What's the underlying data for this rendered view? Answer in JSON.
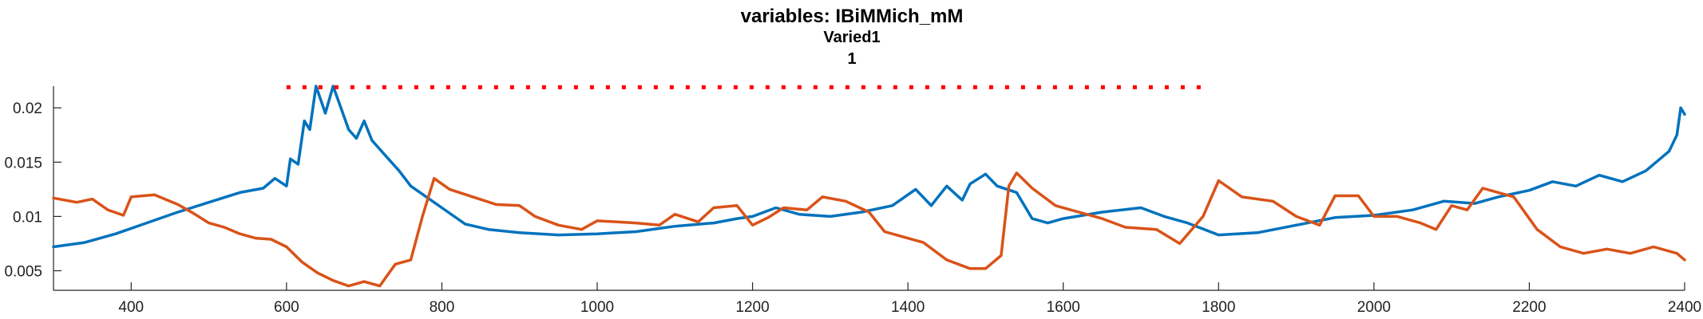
{
  "chart_data": {
    "type": "line",
    "title": "variables: IBiMMich_mM",
    "subtitle_lines": [
      "Varied1",
      "1"
    ],
    "xlabel": "",
    "ylabel": "",
    "xlim": [
      300,
      2400
    ],
    "ylim": [
      0.0032,
      0.022
    ],
    "x_ticks": [
      400,
      600,
      800,
      1000,
      1200,
      1400,
      1600,
      1800,
      2000,
      2200,
      2400
    ],
    "y_ticks": [
      0.005,
      0.01,
      0.015,
      0.02
    ],
    "y_tick_labels": [
      "0.005",
      "0.01",
      "0.015",
      "0.02"
    ],
    "grid": false,
    "colors": {
      "series1": "#0072BD",
      "series2": "#D95319",
      "marker_line": "#FF0000",
      "axis": "#262626"
    },
    "series": [
      {
        "color": "#0072BD",
        "points": [
          [
            300,
            0.0072
          ],
          [
            340,
            0.0076
          ],
          [
            380,
            0.0084
          ],
          [
            420,
            0.0094
          ],
          [
            460,
            0.0104
          ],
          [
            500,
            0.0113
          ],
          [
            540,
            0.0122
          ],
          [
            570,
            0.0126
          ],
          [
            585,
            0.0135
          ],
          [
            600,
            0.0128
          ],
          [
            605,
            0.0153
          ],
          [
            615,
            0.0148
          ],
          [
            623,
            0.0188
          ],
          [
            630,
            0.018
          ],
          [
            638,
            0.022
          ],
          [
            650,
            0.0195
          ],
          [
            660,
            0.022
          ],
          [
            670,
            0.02
          ],
          [
            680,
            0.018
          ],
          [
            690,
            0.0172
          ],
          [
            700,
            0.0188
          ],
          [
            710,
            0.017
          ],
          [
            720,
            0.0162
          ],
          [
            730,
            0.0154
          ],
          [
            745,
            0.0142
          ],
          [
            760,
            0.0128
          ],
          [
            780,
            0.0118
          ],
          [
            800,
            0.0108
          ],
          [
            830,
            0.0093
          ],
          [
            860,
            0.0088
          ],
          [
            900,
            0.0085
          ],
          [
            950,
            0.0083
          ],
          [
            1000,
            0.0084
          ],
          [
            1050,
            0.0086
          ],
          [
            1100,
            0.0091
          ],
          [
            1150,
            0.0094
          ],
          [
            1180,
            0.0098
          ],
          [
            1200,
            0.01
          ],
          [
            1230,
            0.0108
          ],
          [
            1260,
            0.0102
          ],
          [
            1300,
            0.01
          ],
          [
            1340,
            0.0104
          ],
          [
            1380,
            0.011
          ],
          [
            1410,
            0.0125
          ],
          [
            1430,
            0.011
          ],
          [
            1450,
            0.0128
          ],
          [
            1470,
            0.0115
          ],
          [
            1480,
            0.013
          ],
          [
            1500,
            0.0139
          ],
          [
            1515,
            0.0128
          ],
          [
            1540,
            0.0122
          ],
          [
            1560,
            0.0098
          ],
          [
            1580,
            0.0094
          ],
          [
            1600,
            0.0098
          ],
          [
            1650,
            0.0104
          ],
          [
            1700,
            0.0108
          ],
          [
            1730,
            0.01
          ],
          [
            1760,
            0.0094
          ],
          [
            1800,
            0.0083
          ],
          [
            1850,
            0.0085
          ],
          [
            1900,
            0.0092
          ],
          [
            1950,
            0.0099
          ],
          [
            2000,
            0.0101
          ],
          [
            2050,
            0.0106
          ],
          [
            2090,
            0.0114
          ],
          [
            2130,
            0.0112
          ],
          [
            2160,
            0.0118
          ],
          [
            2200,
            0.0124
          ],
          [
            2230,
            0.0132
          ],
          [
            2260,
            0.0128
          ],
          [
            2290,
            0.0138
          ],
          [
            2320,
            0.0132
          ],
          [
            2350,
            0.0142
          ],
          [
            2380,
            0.016
          ],
          [
            2390,
            0.0175
          ],
          [
            2395,
            0.02
          ],
          [
            2400,
            0.0194
          ]
        ]
      },
      {
        "color": "#D95319",
        "points": [
          [
            300,
            0.0117
          ],
          [
            330,
            0.0113
          ],
          [
            350,
            0.0116
          ],
          [
            370,
            0.0106
          ],
          [
            390,
            0.0101
          ],
          [
            400,
            0.0118
          ],
          [
            430,
            0.012
          ],
          [
            460,
            0.0111
          ],
          [
            480,
            0.0103
          ],
          [
            500,
            0.0094
          ],
          [
            520,
            0.009
          ],
          [
            540,
            0.0084
          ],
          [
            560,
            0.008
          ],
          [
            580,
            0.0079
          ],
          [
            600,
            0.0072
          ],
          [
            620,
            0.0058
          ],
          [
            640,
            0.0048
          ],
          [
            660,
            0.0041
          ],
          [
            680,
            0.0036
          ],
          [
            700,
            0.004
          ],
          [
            720,
            0.0036
          ],
          [
            740,
            0.0056
          ],
          [
            760,
            0.006
          ],
          [
            775,
            0.01
          ],
          [
            790,
            0.0135
          ],
          [
            810,
            0.0125
          ],
          [
            840,
            0.0118
          ],
          [
            870,
            0.0111
          ],
          [
            900,
            0.011
          ],
          [
            920,
            0.01
          ],
          [
            950,
            0.0092
          ],
          [
            980,
            0.0088
          ],
          [
            1000,
            0.0096
          ],
          [
            1050,
            0.0094
          ],
          [
            1080,
            0.0092
          ],
          [
            1100,
            0.0102
          ],
          [
            1130,
            0.0095
          ],
          [
            1150,
            0.0108
          ],
          [
            1180,
            0.011
          ],
          [
            1200,
            0.0092
          ],
          [
            1220,
            0.0099
          ],
          [
            1240,
            0.0108
          ],
          [
            1270,
            0.0106
          ],
          [
            1290,
            0.0118
          ],
          [
            1320,
            0.0114
          ],
          [
            1350,
            0.0104
          ],
          [
            1370,
            0.0086
          ],
          [
            1390,
            0.0082
          ],
          [
            1420,
            0.0076
          ],
          [
            1450,
            0.006
          ],
          [
            1480,
            0.0052
          ],
          [
            1500,
            0.0052
          ],
          [
            1520,
            0.0064
          ],
          [
            1530,
            0.0128
          ],
          [
            1540,
            0.014
          ],
          [
            1560,
            0.0126
          ],
          [
            1590,
            0.011
          ],
          [
            1620,
            0.0104
          ],
          [
            1650,
            0.0098
          ],
          [
            1680,
            0.009
          ],
          [
            1720,
            0.0088
          ],
          [
            1750,
            0.0075
          ],
          [
            1780,
            0.01
          ],
          [
            1800,
            0.0133
          ],
          [
            1830,
            0.0118
          ],
          [
            1870,
            0.0114
          ],
          [
            1900,
            0.01
          ],
          [
            1930,
            0.0092
          ],
          [
            1950,
            0.0119
          ],
          [
            1980,
            0.0119
          ],
          [
            2000,
            0.01
          ],
          [
            2030,
            0.01
          ],
          [
            2060,
            0.0094
          ],
          [
            2080,
            0.0088
          ],
          [
            2100,
            0.011
          ],
          [
            2120,
            0.0106
          ],
          [
            2140,
            0.0126
          ],
          [
            2180,
            0.0118
          ],
          [
            2210,
            0.0088
          ],
          [
            2240,
            0.0072
          ],
          [
            2270,
            0.0066
          ],
          [
            2300,
            0.007
          ],
          [
            2330,
            0.0066
          ],
          [
            2360,
            0.0072
          ],
          [
            2390,
            0.0066
          ],
          [
            2400,
            0.006
          ]
        ]
      }
    ],
    "annotation": {
      "style": "dotted",
      "color": "#FF0000",
      "x_start": 600,
      "x_end": 1780,
      "y": 0.0219
    }
  }
}
